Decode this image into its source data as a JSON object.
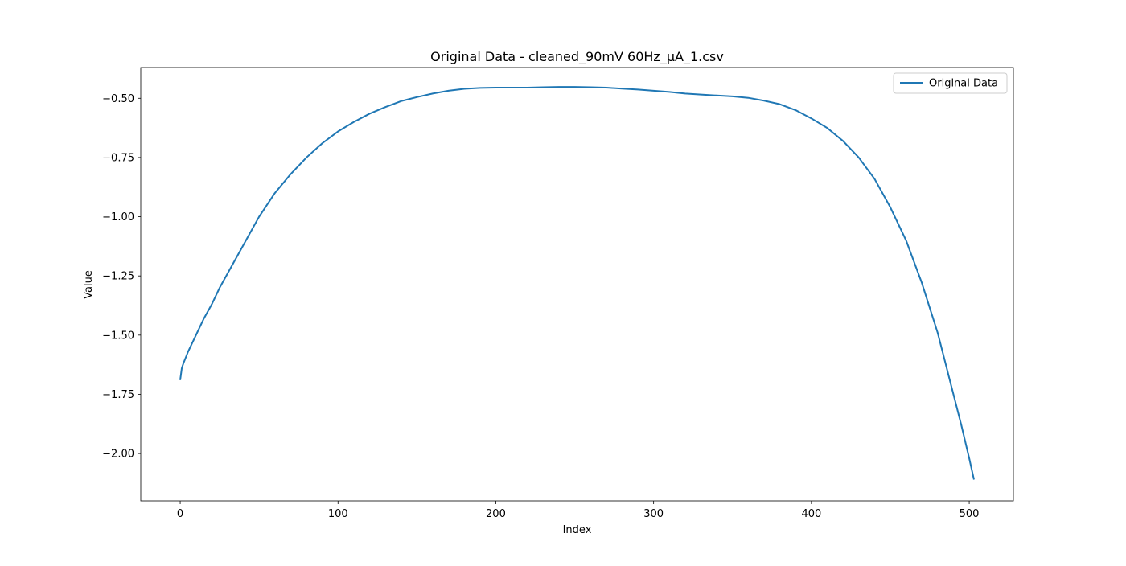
{
  "chart_data": {
    "type": "line",
    "title": "Original Data - cleaned_90mV 60Hz_µA_1.csv",
    "xlabel": "Index",
    "ylabel": "Value",
    "xlim": [
      -25,
      528
    ],
    "ylim": [
      -2.2,
      -0.37
    ],
    "xticks": [
      0,
      100,
      200,
      300,
      400,
      500
    ],
    "yticks": [
      -2.0,
      -1.75,
      -1.5,
      -1.25,
      -1.0,
      -0.75,
      -0.5
    ],
    "xtick_labels": [
      "0",
      "100",
      "200",
      "300",
      "400",
      "500"
    ],
    "ytick_labels": [
      "−2.00",
      "−1.75",
      "−1.50",
      "−1.25",
      "−1.00",
      "−0.75",
      "−0.50"
    ],
    "grid": false,
    "legend_position": "top-right",
    "series": [
      {
        "name": "Original Data",
        "color": "#1f77b4",
        "x": [
          0,
          1,
          2,
          5,
          10,
          15,
          20,
          25,
          30,
          40,
          50,
          60,
          70,
          80,
          90,
          100,
          110,
          120,
          130,
          140,
          150,
          160,
          170,
          180,
          190,
          200,
          210,
          220,
          230,
          240,
          250,
          260,
          270,
          280,
          290,
          300,
          310,
          320,
          330,
          340,
          350,
          360,
          370,
          380,
          390,
          400,
          410,
          420,
          430,
          440,
          450,
          460,
          470,
          480,
          490,
          495,
          500,
          503
        ],
        "values": [
          -1.69,
          -1.64,
          -1.62,
          -1.57,
          -1.5,
          -1.43,
          -1.37,
          -1.3,
          -1.24,
          -1.12,
          -1.0,
          -0.9,
          -0.82,
          -0.75,
          -0.69,
          -0.64,
          -0.6,
          -0.565,
          -0.537,
          -0.512,
          -0.495,
          -0.48,
          -0.468,
          -0.46,
          -0.456,
          -0.455,
          -0.455,
          -0.455,
          -0.453,
          -0.452,
          -0.452,
          -0.453,
          -0.455,
          -0.459,
          -0.463,
          -0.468,
          -0.473,
          -0.48,
          -0.484,
          -0.488,
          -0.492,
          -0.498,
          -0.51,
          -0.525,
          -0.55,
          -0.585,
          -0.625,
          -0.68,
          -0.75,
          -0.84,
          -0.96,
          -1.1,
          -1.28,
          -1.49,
          -1.75,
          -1.88,
          -2.02,
          -2.11
        ]
      }
    ]
  }
}
